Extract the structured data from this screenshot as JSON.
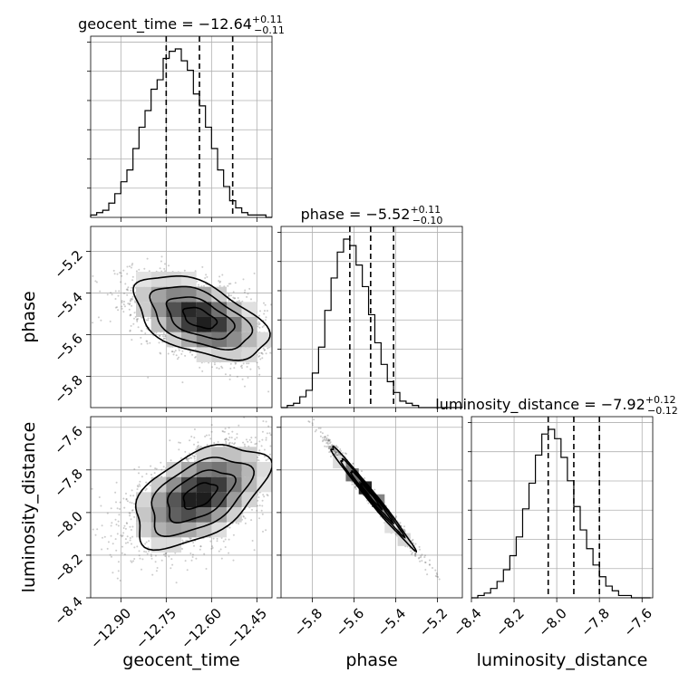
{
  "chart_data": {
    "type": "corner",
    "parameters": [
      {
        "name": "geocent_time",
        "median": -12.64,
        "plus": 0.11,
        "minus": 0.11,
        "range": [
          -13.0,
          -12.4
        ],
        "ticks": [
          -12.9,
          -12.75,
          -12.6,
          -12.45
        ],
        "tick_labels": [
          "−12.90",
          "−12.75",
          "−12.60",
          "−12.45"
        ]
      },
      {
        "name": "phase",
        "median": -5.52,
        "plus": 0.11,
        "minus": 0.1,
        "range": [
          -5.95,
          -5.08
        ],
        "ticks": [
          -5.8,
          -5.6,
          -5.4,
          -5.2
        ],
        "tick_labels": [
          "−5.8",
          "−5.6",
          "−5.4",
          "−5.2"
        ]
      },
      {
        "name": "luminosity_distance",
        "median": -7.92,
        "plus": 0.12,
        "minus": 0.12,
        "range": [
          -8.4,
          -7.55
        ],
        "ticks": [
          -8.4,
          -8.2,
          -8.0,
          -7.8,
          -7.6
        ],
        "tick_labels": [
          "−8.4",
          "−8.2",
          "−8.0",
          "−7.8",
          "−7.6"
        ]
      }
    ],
    "titles": [
      {
        "main": "geocent_time = −12.64",
        "sup": "+0.11",
        "sub": "−0.11"
      },
      {
        "main": "phase = −5.52",
        "sup": "+0.11",
        "sub": "−0.10"
      },
      {
        "main": "luminosity_distance = −7.92",
        "sup": "+0.12",
        "sub": "−0.12"
      }
    ],
    "axis_labels": [
      "geocent_time",
      "phase",
      "luminosity_distance"
    ],
    "histograms": [
      {
        "param": "geocent_time",
        "bins_x": [
          -13.0,
          -12.98,
          -12.96,
          -12.94,
          -12.92,
          -12.9,
          -12.88,
          -12.86,
          -12.84,
          -12.82,
          -12.8,
          -12.78,
          -12.76,
          -12.74,
          -12.72,
          -12.7,
          -12.68,
          -12.66,
          -12.64,
          -12.62,
          -12.6,
          -12.58,
          -12.56,
          -12.54,
          -12.52,
          -12.5,
          -12.48,
          -12.46,
          -12.44,
          -12.42,
          -12.4
        ],
        "counts": [
          1,
          2,
          3,
          6,
          10,
          15,
          20,
          29,
          38,
          45,
          54,
          58,
          67,
          70,
          71,
          66,
          62,
          52,
          47,
          38,
          29,
          20,
          13,
          7,
          4,
          2,
          1,
          1,
          1,
          0
        ]
      },
      {
        "param": "phase",
        "bins_x": [
          -5.95,
          -5.92,
          -5.89,
          -5.86,
          -5.83,
          -5.8,
          -5.77,
          -5.74,
          -5.71,
          -5.68,
          -5.65,
          -5.62,
          -5.59,
          -5.56,
          -5.53,
          -5.5,
          -5.47,
          -5.44,
          -5.41,
          -5.38,
          -5.35,
          -5.32,
          -5.29,
          -5.26,
          -5.23,
          -5.2,
          -5.17,
          -5.14,
          -5.11,
          -5.08
        ],
        "counts": [
          0,
          1,
          2,
          5,
          8,
          16,
          28,
          45,
          60,
          72,
          78,
          75,
          66,
          56,
          43,
          30,
          20,
          12,
          7,
          3,
          2,
          1,
          0,
          0,
          0,
          0,
          0,
          0,
          0
        ]
      },
      {
        "param": "luminosity_distance",
        "bins_x": [
          -8.4,
          -8.37,
          -8.34,
          -8.31,
          -8.28,
          -8.25,
          -8.22,
          -8.19,
          -8.16,
          -8.13,
          -8.1,
          -8.07,
          -8.04,
          -8.01,
          -7.98,
          -7.95,
          -7.92,
          -7.89,
          -7.86,
          -7.83,
          -7.8,
          -7.77,
          -7.74,
          -7.71,
          -7.68,
          -7.65,
          -7.62,
          -7.59,
          -7.56
        ],
        "counts": [
          0,
          1,
          2,
          4,
          7,
          12,
          18,
          26,
          38,
          49,
          61,
          70,
          72,
          68,
          60,
          50,
          39,
          29,
          21,
          14,
          9,
          5,
          3,
          1,
          1,
          0,
          0,
          0
        ]
      }
    ],
    "quantile_lines": [
      {
        "param": "geocent_time",
        "values": [
          -12.75,
          -12.64,
          -12.53
        ]
      },
      {
        "param": "phase",
        "values": [
          -5.62,
          -5.52,
          -5.41
        ]
      },
      {
        "param": "luminosity_distance",
        "values": [
          -8.04,
          -7.92,
          -7.8
        ]
      }
    ],
    "pairs": [
      {
        "x": "geocent_time",
        "y": "phase",
        "mean": [
          -12.64,
          -5.52
        ],
        "sd": [
          0.11,
          0.1
        ],
        "rho": -0.5
      },
      {
        "x": "geocent_time",
        "y": "luminosity_distance",
        "mean": [
          -12.64,
          -7.92
        ],
        "sd": [
          0.11,
          0.12
        ],
        "rho": 0.5
      },
      {
        "x": "phase",
        "y": "luminosity_distance",
        "mean": [
          -5.52,
          -7.92
        ],
        "sd": [
          0.1,
          0.12
        ],
        "rho": -0.99
      }
    ],
    "grid": true
  }
}
